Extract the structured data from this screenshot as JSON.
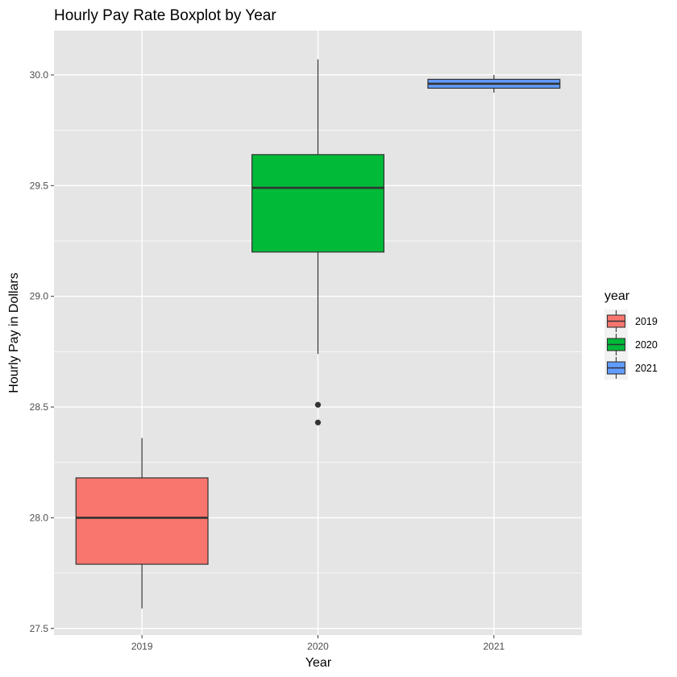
{
  "chart_data": {
    "type": "boxplot",
    "title": "Hourly Pay Rate Boxplot by Year",
    "xlabel": "Year",
    "ylabel": "Hourly Pay in Dollars",
    "ylim": [
      27.47,
      30.2
    ],
    "y_ticks": [
      "27.5",
      "28.0",
      "28.5",
      "29.0",
      "29.5",
      "30.0"
    ],
    "y_tick_values": [
      27.5,
      28.0,
      28.5,
      29.0,
      29.5,
      30.0
    ],
    "categories": [
      "2019",
      "2020",
      "2021"
    ],
    "grid": true,
    "legend": {
      "title": "year",
      "position": "right",
      "items": [
        "2019",
        "2020",
        "2021"
      ]
    },
    "colors": {
      "2019": "#F8766D",
      "2020": "#00BA38",
      "2021": "#619CFF",
      "panel_bg": "#E5E5E5",
      "grid": "#FFFFFF",
      "box_outline": "#333333"
    },
    "series": [
      {
        "name": "2019",
        "whisker_low": 27.59,
        "q1": 27.79,
        "median": 28.0,
        "q3": 28.18,
        "whisker_high": 28.36,
        "outliers": []
      },
      {
        "name": "2020",
        "whisker_low": 28.74,
        "q1": 29.2,
        "median": 29.49,
        "q3": 29.64,
        "whisker_high": 30.07,
        "outliers": [
          28.51,
          28.43
        ]
      },
      {
        "name": "2021",
        "whisker_low": 29.92,
        "q1": 29.94,
        "median": 29.96,
        "q3": 29.98,
        "whisker_high": 30.0,
        "outliers": []
      }
    ]
  }
}
